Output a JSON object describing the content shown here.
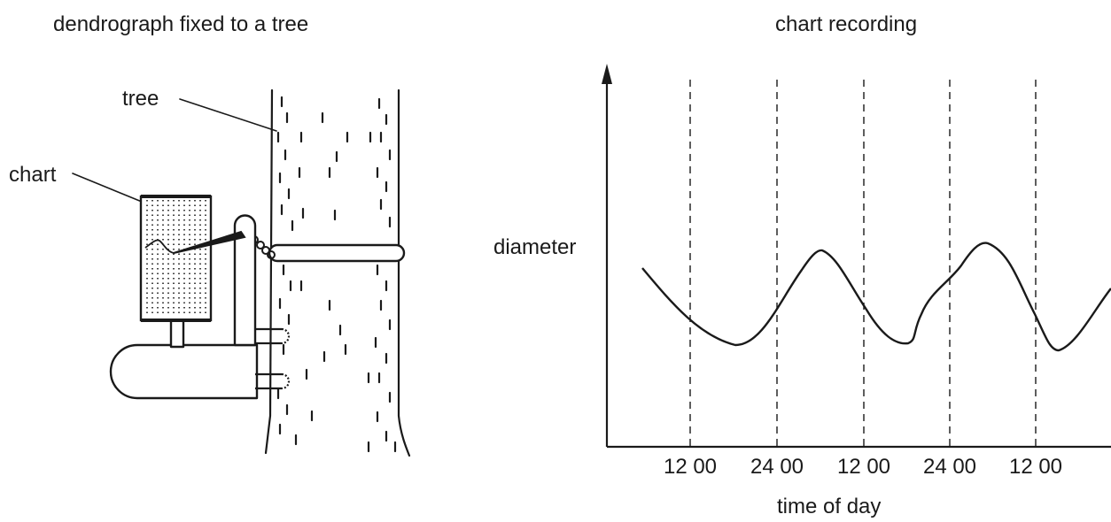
{
  "left_panel": {
    "title": "dendrograph fixed to a tree",
    "labels": {
      "tree": "tree",
      "chart": "chart"
    }
  },
  "right_panel": {
    "title": "chart recording",
    "y_axis_label": "diameter",
    "x_axis_label": "time of day",
    "ticks": [
      "12 00",
      "24 00",
      "12 00",
      "24 00",
      "12 00"
    ]
  },
  "colors": {
    "ink": "#1a1a1a",
    "background": "#ffffff"
  }
}
